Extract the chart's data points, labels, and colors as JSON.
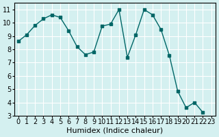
{
  "x": [
    0,
    1,
    2,
    3,
    4,
    5,
    6,
    7,
    8,
    9,
    10,
    11,
    12,
    13,
    14,
    15,
    16,
    17,
    18,
    19,
    20,
    21,
    22,
    23
  ],
  "y": [
    8.6,
    9.1,
    9.8,
    10.3,
    10.6,
    10.4,
    9.4,
    8.2,
    7.6,
    7.8,
    9.75,
    9.9,
    11.0,
    7.4,
    9.1,
    11.0,
    10.6,
    9.5,
    7.55,
    4.85,
    3.6,
    4.0,
    3.25,
    null
  ],
  "line_color": "#006666",
  "marker": "s",
  "marker_size": 3,
  "xlabel": "Humidex (Indice chaleur)",
  "xlim": [
    -0.5,
    23.5
  ],
  "ylim": [
    3,
    11.5
  ],
  "yticks": [
    3,
    4,
    5,
    6,
    7,
    8,
    9,
    10,
    11
  ],
  "xticks": [
    0,
    1,
    2,
    3,
    4,
    5,
    6,
    7,
    8,
    9,
    10,
    11,
    12,
    13,
    14,
    15,
    16,
    17,
    18,
    19,
    20,
    21,
    22,
    23
  ],
  "bg_color": "#d4f0f0",
  "grid_color": "#ffffff",
  "tick_label_fontsize": 7,
  "xlabel_fontsize": 8
}
